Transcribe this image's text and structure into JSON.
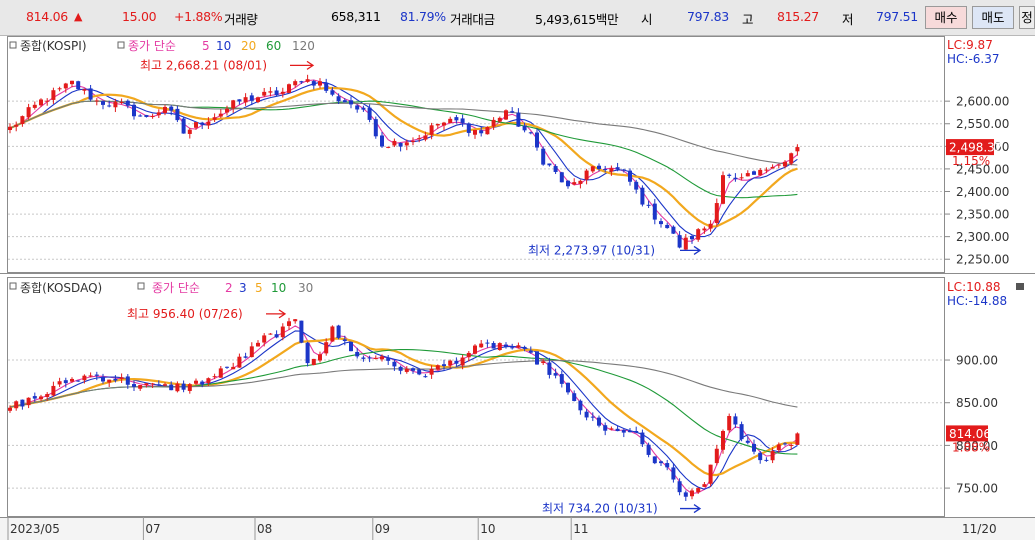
{
  "topbar": {
    "price": "814.06",
    "arrow": "▲",
    "change": "15.00",
    "change_pct": "+1.88%",
    "volume_label": "거래량",
    "volume": "658,311",
    "volume_pct": "81.79%",
    "amount_label": "거래대금",
    "amount": "5,493,615백만",
    "open_label": "시",
    "open": "797.83",
    "high_label": "고",
    "high": "815.27",
    "low_label": "저",
    "low": "797.51",
    "buy_label": "매수",
    "sell_label": "매도",
    "extra_label": "정"
  },
  "colors": {
    "up": "#e21b1b",
    "down": "#1c36c8",
    "ma_short": "#e43ba3",
    "ma_blue": "#1c36c8",
    "ma_orange": "#f2a81e",
    "ma_green": "#1f9a38",
    "ma_gray": "#7a7a7a",
    "price_tag": "#e21b1b"
  },
  "chart_data": [
    {
      "type": "candlestick",
      "title": "종합(KOSPI)",
      "ma_label": "종가 단순",
      "ma_periods": [
        "5",
        "10",
        "20",
        "60",
        "120"
      ],
      "ylim": [
        2235,
        2700
      ],
      "yticks": [
        "2,600.00",
        "2,550.00",
        "2,500.00",
        "2,450.00",
        "2,400.00",
        "2,350.00",
        "2,300.00",
        "2,250.00"
      ],
      "ytick_values": [
        2600,
        2550,
        2500,
        2450,
        2400,
        2350,
        2300,
        2250
      ],
      "lc": "LC:9.87",
      "hc": "HC:-6.37",
      "last_price": "2,498.32",
      "last_pct": "1.15%",
      "last_value": 2498.32,
      "high_annotation": "최고 2,668.21 (08/01)",
      "high_value": 2668.21,
      "low_annotation": "최저 2,273.97 (10/31)",
      "low_value": 2273.97,
      "anchors": [
        [
          0,
          2540
        ],
        [
          5,
          2600
        ],
        [
          10,
          2640
        ],
        [
          14,
          2600
        ],
        [
          18,
          2590
        ],
        [
          22,
          2560
        ],
        [
          25,
          2590
        ],
        [
          28,
          2530
        ],
        [
          31,
          2555
        ],
        [
          34,
          2575
        ],
        [
          37,
          2600
        ],
        [
          40,
          2610
        ],
        [
          44,
          2620
        ],
        [
          47,
          2650
        ],
        [
          50,
          2640
        ],
        [
          52,
          2610
        ],
        [
          55,
          2595
        ],
        [
          58,
          2560
        ],
        [
          60,
          2505
        ],
        [
          63,
          2510
        ],
        [
          66,
          2520
        ],
        [
          69,
          2550
        ],
        [
          72,
          2555
        ],
        [
          74,
          2540
        ],
        [
          76,
          2530
        ],
        [
          78,
          2555
        ],
        [
          80,
          2580
        ],
        [
          82,
          2550
        ],
        [
          84,
          2520
        ],
        [
          86,
          2470
        ],
        [
          88,
          2440
        ],
        [
          90,
          2405
        ],
        [
          93,
          2440
        ],
        [
          96,
          2455
        ],
        [
          99,
          2440
        ],
        [
          101,
          2400
        ],
        [
          103,
          2360
        ],
        [
          106,
          2320
        ],
        [
          108,
          2280
        ],
        [
          110,
          2300
        ],
        [
          113,
          2330
        ],
        [
          115,
          2440
        ],
        [
          117,
          2420
        ],
        [
          119,
          2430
        ],
        [
          121,
          2440
        ],
        [
          123,
          2465
        ],
        [
          125,
          2465
        ],
        [
          127,
          2498
        ]
      ]
    },
    {
      "type": "candlestick",
      "title": "종합(KOSDAQ)",
      "ma_label": "종가 단순",
      "ma_periods": [
        "2",
        "3",
        "5",
        "10",
        "30"
      ],
      "ylim": [
        722,
        975
      ],
      "yticks": [
        "900.00",
        "850.00",
        "800.00",
        "750.00"
      ],
      "ytick_values": [
        900,
        850,
        800,
        750
      ],
      "lc": "LC:10.88",
      "hc": "HC:-14.88",
      "last_price": "814.06",
      "last_pct": "1.88%",
      "last_value": 814.06,
      "high_annotation": "최고 956.40 (07/26)",
      "high_value": 956.4,
      "low_annotation": "최저 734.20 (10/31)",
      "low_value": 734.2,
      "anchors": [
        [
          0,
          845
        ],
        [
          5,
          858
        ],
        [
          9,
          875
        ],
        [
          13,
          882
        ],
        [
          17,
          878
        ],
        [
          21,
          870
        ],
        [
          25,
          868
        ],
        [
          29,
          870
        ],
        [
          32,
          878
        ],
        [
          35,
          890
        ],
        [
          38,
          905
        ],
        [
          41,
          925
        ],
        [
          44,
          935
        ],
        [
          46,
          945
        ],
        [
          48,
          900
        ],
        [
          50,
          910
        ],
        [
          52,
          935
        ],
        [
          54,
          920
        ],
        [
          57,
          900
        ],
        [
          60,
          905
        ],
        [
          62,
          895
        ],
        [
          64,
          885
        ],
        [
          67,
          885
        ],
        [
          70,
          893
        ],
        [
          73,
          905
        ],
        [
          76,
          915
        ],
        [
          79,
          918
        ],
        [
          82,
          912
        ],
        [
          85,
          900
        ],
        [
          88,
          880
        ],
        [
          90,
          858
        ],
        [
          93,
          835
        ],
        [
          96,
          815
        ],
        [
          98,
          820
        ],
        [
          101,
          810
        ],
        [
          104,
          780
        ],
        [
          106,
          770
        ],
        [
          108,
          745
        ],
        [
          110,
          742
        ],
        [
          112,
          755
        ],
        [
          114,
          800
        ],
        [
          116,
          830
        ],
        [
          118,
          810
        ],
        [
          120,
          790
        ],
        [
          122,
          785
        ],
        [
          124,
          800
        ],
        [
          126,
          805
        ],
        [
          127,
          814
        ]
      ]
    }
  ],
  "x_axis": {
    "labels": [
      "2023/05",
      "07",
      "08",
      "09",
      "10",
      "11"
    ],
    "label_index": [
      0,
      22,
      40,
      59,
      76,
      91
    ],
    "right_label": "11/20"
  }
}
